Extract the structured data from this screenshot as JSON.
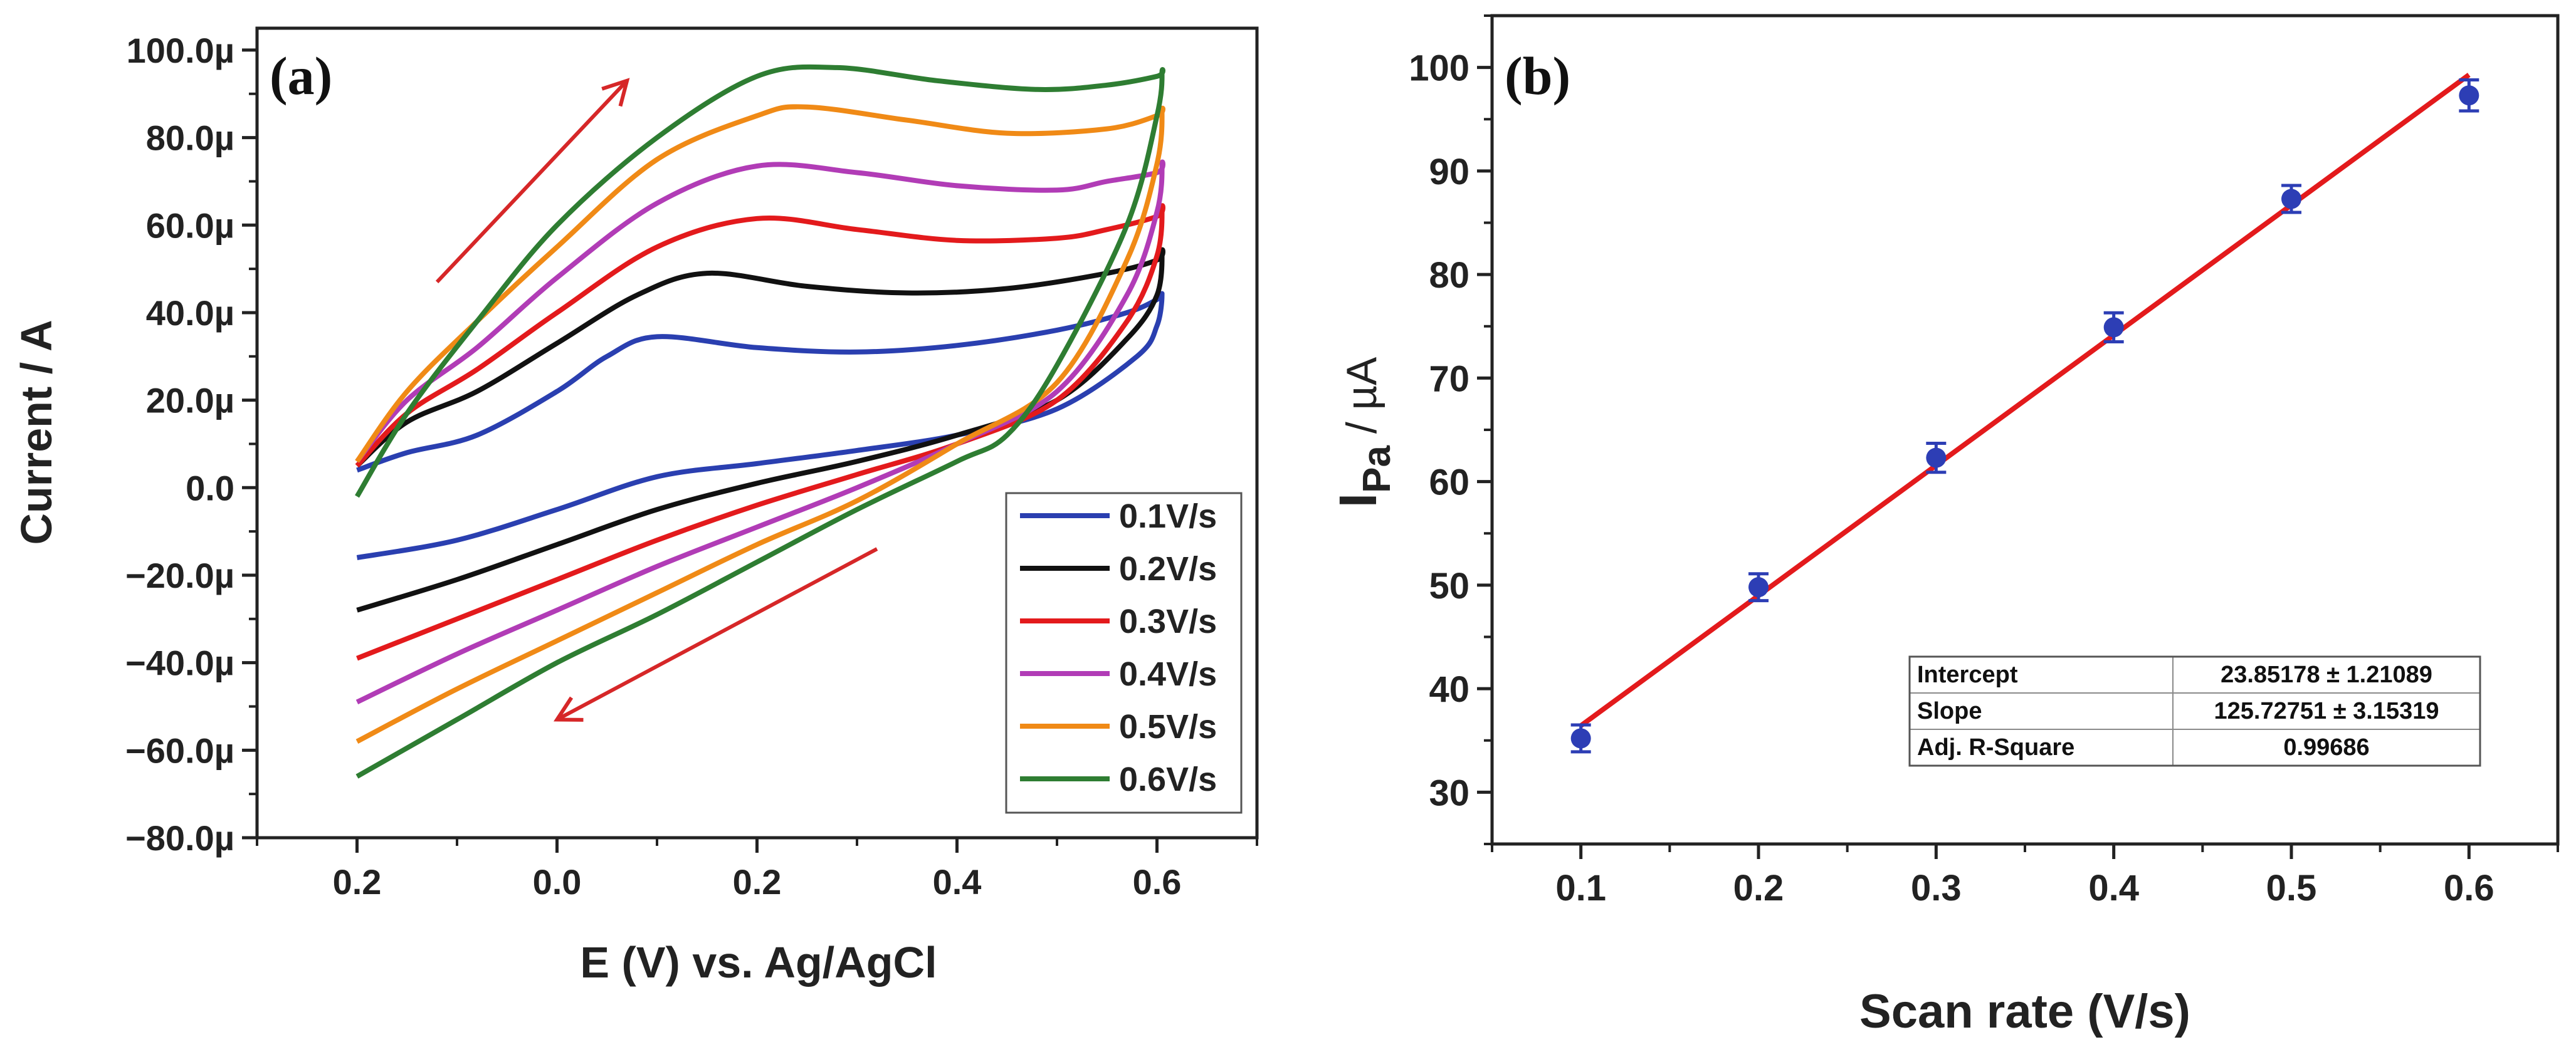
{
  "figure": {
    "colors": {
      "red_line": "#e31a1c",
      "marker": "#2d3eb5",
      "arrow": "#d62728"
    }
  },
  "chart_data": [
    {
      "type": "line",
      "panel_label": "(a)",
      "title": "",
      "xlabel": "E (V) vs. Ag/AgCl",
      "ylabel": "Current / A",
      "xlim": [
        0.3,
        -0.7
      ],
      "ylim": [
        -80,
        105
      ],
      "x_note": "x axis is reversed; tick labels printed as shown",
      "x_ticks": [
        {
          "value": 0.2,
          "label": "0.2"
        },
        {
          "value": 0.0,
          "label": "0.0"
        },
        {
          "value": -0.2,
          "label": "0.2"
        },
        {
          "value": -0.4,
          "label": "0.4"
        },
        {
          "value": -0.6,
          "label": "0.6"
        }
      ],
      "y_ticks": [
        {
          "value": 100,
          "label": "100.0µ"
        },
        {
          "value": 80,
          "label": "80.0µ"
        },
        {
          "value": 60,
          "label": "60.0µ"
        },
        {
          "value": 40,
          "label": "40.0µ"
        },
        {
          "value": 20,
          "label": "20.0µ"
        },
        {
          "value": 0,
          "label": "0.0"
        },
        {
          "value": -20,
          "label": "−20.0µ"
        },
        {
          "value": -40,
          "label": "−40.0µ"
        },
        {
          "value": -60,
          "label": "−60.0µ"
        },
        {
          "value": -80,
          "label": "−80.0µ"
        }
      ],
      "legend_position": "bottom-right",
      "series": [
        {
          "name": "0.1V/s",
          "color": "#2a3fb0",
          "forward": [
            [
              0.2,
              4
            ],
            [
              0.15,
              8
            ],
            [
              0.08,
              12
            ],
            [
              0.0,
              22
            ],
            [
              -0.05,
              30
            ],
            [
              -0.1,
              34.5
            ],
            [
              -0.2,
              32
            ],
            [
              -0.3,
              31
            ],
            [
              -0.4,
              32.5
            ],
            [
              -0.5,
              36
            ],
            [
              -0.57,
              40
            ],
            [
              -0.6,
              43
            ]
          ],
          "reverse": [
            [
              -0.605,
              44
            ],
            [
              -0.6,
              37
            ],
            [
              -0.58,
              30
            ],
            [
              -0.5,
              18
            ],
            [
              -0.4,
              12
            ],
            [
              -0.3,
              8.5
            ],
            [
              -0.2,
              5.5
            ],
            [
              -0.1,
              2.5
            ],
            [
              0.0,
              -5
            ],
            [
              0.1,
              -12
            ],
            [
              0.2,
              -16
            ]
          ]
        },
        {
          "name": "0.2V/s",
          "color": "#111111",
          "forward": [
            [
              0.2,
              5
            ],
            [
              0.15,
              15
            ],
            [
              0.08,
              22
            ],
            [
              0.0,
              33
            ],
            [
              -0.08,
              44
            ],
            [
              -0.15,
              49
            ],
            [
              -0.25,
              46
            ],
            [
              -0.35,
              44.5
            ],
            [
              -0.45,
              45.5
            ],
            [
              -0.55,
              49
            ],
            [
              -0.6,
              52
            ]
          ],
          "reverse": [
            [
              -0.605,
              54
            ],
            [
              -0.6,
              44
            ],
            [
              -0.57,
              34
            ],
            [
              -0.5,
              20
            ],
            [
              -0.4,
              12
            ],
            [
              -0.3,
              6
            ],
            [
              -0.2,
              1
            ],
            [
              -0.1,
              -5
            ],
            [
              0.0,
              -13
            ],
            [
              0.1,
              -21
            ],
            [
              0.2,
              -28
            ]
          ]
        },
        {
          "name": "0.3V/s",
          "color": "#e31a1c",
          "forward": [
            [
              0.2,
              5
            ],
            [
              0.15,
              17
            ],
            [
              0.08,
              27
            ],
            [
              0.0,
              40
            ],
            [
              -0.1,
              55
            ],
            [
              -0.2,
              61.5
            ],
            [
              -0.3,
              59
            ],
            [
              -0.4,
              56.5
            ],
            [
              -0.5,
              57
            ],
            [
              -0.55,
              59
            ],
            [
              -0.6,
              62
            ]
          ],
          "reverse": [
            [
              -0.605,
              64
            ],
            [
              -0.6,
              53
            ],
            [
              -0.57,
              38
            ],
            [
              -0.5,
              20
            ],
            [
              -0.4,
              10
            ],
            [
              -0.3,
              3
            ],
            [
              -0.2,
              -4
            ],
            [
              -0.1,
              -12
            ],
            [
              0.0,
              -21
            ],
            [
              0.1,
              -30
            ],
            [
              0.2,
              -39
            ]
          ]
        },
        {
          "name": "0.4V/s",
          "color": "#b13cb6",
          "forward": [
            [
              0.2,
              6
            ],
            [
              0.15,
              20
            ],
            [
              0.08,
              32
            ],
            [
              0.0,
              48
            ],
            [
              -0.1,
              65
            ],
            [
              -0.2,
              73.5
            ],
            [
              -0.3,
              72
            ],
            [
              -0.4,
              69
            ],
            [
              -0.5,
              68
            ],
            [
              -0.55,
              70
            ],
            [
              -0.6,
              72
            ]
          ],
          "reverse": [
            [
              -0.605,
              74
            ],
            [
              -0.6,
              63
            ],
            [
              -0.57,
              44
            ],
            [
              -0.5,
              22
            ],
            [
              -0.4,
              10
            ],
            [
              -0.3,
              0
            ],
            [
              -0.2,
              -9
            ],
            [
              -0.1,
              -18
            ],
            [
              0.0,
              -28
            ],
            [
              0.1,
              -38
            ],
            [
              0.2,
              -49
            ]
          ]
        },
        {
          "name": "0.5V/s",
          "color": "#f08a16",
          "forward": [
            [
              0.2,
              6
            ],
            [
              0.15,
              22
            ],
            [
              0.08,
              38
            ],
            [
              0.0,
              55
            ],
            [
              -0.1,
              75
            ],
            [
              -0.2,
              85
            ],
            [
              -0.25,
              87
            ],
            [
              -0.35,
              84
            ],
            [
              -0.45,
              81
            ],
            [
              -0.55,
              82
            ],
            [
              -0.6,
              85
            ]
          ],
          "reverse": [
            [
              -0.605,
              86
            ],
            [
              -0.6,
              74
            ],
            [
              -0.57,
              52
            ],
            [
              -0.5,
              24
            ],
            [
              -0.4,
              10
            ],
            [
              -0.3,
              -3
            ],
            [
              -0.2,
              -13
            ],
            [
              -0.1,
              -24
            ],
            [
              0.0,
              -35
            ],
            [
              0.1,
              -46
            ],
            [
              0.2,
              -58
            ]
          ]
        },
        {
          "name": "0.6V/s",
          "color": "#2e7d32",
          "forward": [
            [
              0.2,
              -2
            ],
            [
              0.15,
              17
            ],
            [
              0.08,
              38
            ],
            [
              0.0,
              60
            ],
            [
              -0.1,
              80
            ],
            [
              -0.2,
              94
            ],
            [
              -0.28,
              96
            ],
            [
              -0.38,
              93
            ],
            [
              -0.48,
              91
            ],
            [
              -0.55,
              92
            ],
            [
              -0.6,
              94
            ]
          ],
          "reverse": [
            [
              -0.605,
              95
            ],
            [
              -0.6,
              85
            ],
            [
              -0.57,
              60
            ],
            [
              -0.5,
              28
            ],
            [
              -0.45,
              12
            ],
            [
              -0.4,
              6
            ],
            [
              -0.3,
              -5
            ],
            [
              -0.2,
              -17
            ],
            [
              -0.1,
              -29
            ],
            [
              0.0,
              -40
            ],
            [
              0.1,
              -53
            ],
            [
              0.2,
              -66
            ]
          ]
        }
      ],
      "arrows": [
        {
          "from": [
            0.12,
            47
          ],
          "to": [
            -0.07,
            93
          ]
        },
        {
          "from": [
            -0.32,
            -14
          ],
          "to": [
            -0.0,
            -53
          ]
        }
      ]
    },
    {
      "type": "scatter",
      "panel_label": "(b)",
      "title": "",
      "xlabel": "Scan rate (V/s)",
      "ylabel": "Ipa / µA",
      "ylabel_main": "I",
      "ylabel_sub": "Pa",
      "ylabel_unit": " / µA",
      "xlim": [
        0.05,
        0.65
      ],
      "ylim": [
        25,
        105
      ],
      "x_ticks": [
        {
          "value": 0.1,
          "label": "0.1"
        },
        {
          "value": 0.2,
          "label": "0.2"
        },
        {
          "value": 0.3,
          "label": "0.3"
        },
        {
          "value": 0.4,
          "label": "0.4"
        },
        {
          "value": 0.5,
          "label": "0.5"
        },
        {
          "value": 0.6,
          "label": "0.6"
        }
      ],
      "y_ticks": [
        {
          "value": 30,
          "label": "30"
        },
        {
          "value": 40,
          "label": "40"
        },
        {
          "value": 50,
          "label": "50"
        },
        {
          "value": 60,
          "label": "60"
        },
        {
          "value": 70,
          "label": "70"
        },
        {
          "value": 80,
          "label": "80"
        },
        {
          "value": 90,
          "label": "90"
        },
        {
          "value": 100,
          "label": "100"
        }
      ],
      "points": [
        {
          "x": 0.1,
          "y": 35.2,
          "err": 1.3
        },
        {
          "x": 0.2,
          "y": 49.8,
          "err": 1.3
        },
        {
          "x": 0.3,
          "y": 62.3,
          "err": 1.4
        },
        {
          "x": 0.4,
          "y": 74.9,
          "err": 1.4
        },
        {
          "x": 0.5,
          "y": 87.3,
          "err": 1.3
        },
        {
          "x": 0.6,
          "y": 97.3,
          "err": 1.5
        }
      ],
      "fit": {
        "intercept": 23.85178,
        "slope": 125.72751,
        "x_range": [
          0.1,
          0.6
        ],
        "color": "#e31a1c"
      },
      "fit_table": [
        {
          "label": "Intercept",
          "value": "23.85178 ± 1.21089"
        },
        {
          "label": "Slope",
          "value": "125.72751 ± 3.15319"
        },
        {
          "label": "Adj. R-Square",
          "value": "0.99686"
        }
      ]
    }
  ]
}
